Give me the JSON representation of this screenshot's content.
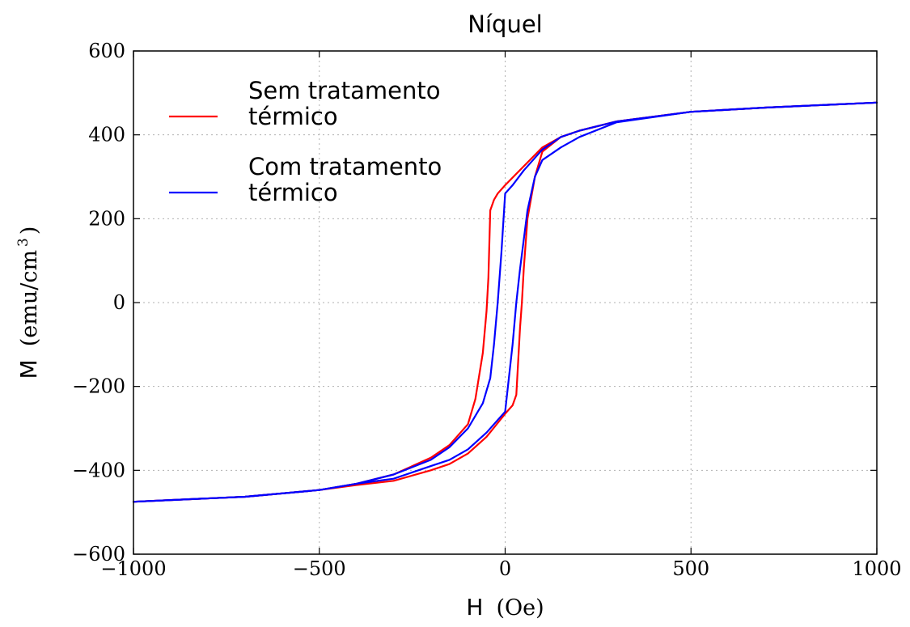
{
  "chart_data": {
    "type": "line",
    "title": "Níquel",
    "xlabel": {
      "symbol": "H",
      "unit": "(Oe)"
    },
    "ylabel": {
      "symbol": "M",
      "unit": "(emu/cm",
      "unit_sup": "3",
      "unit_close": ")"
    },
    "xlim": [
      -1000,
      1000
    ],
    "ylim": [
      -600,
      600
    ],
    "xticks": [
      -1000,
      -500,
      0,
      500,
      1000
    ],
    "xtick_labels": [
      "−1000",
      "−500",
      "0",
      "500",
      "1000"
    ],
    "yticks": [
      -600,
      -400,
      -200,
      0,
      200,
      400,
      600
    ],
    "ytick_labels": [
      "−600",
      "−400",
      "−200",
      "0",
      "200",
      "400",
      "600"
    ],
    "grid": true,
    "legend_position": "upper-left",
    "series": [
      {
        "name": "Sem tratamento térmico",
        "name_lines": [
          "Sem tratamento",
          "térmico"
        ],
        "color": "#ff0000",
        "branches": [
          {
            "x": [
              -1000,
              -700,
              -500,
              -400,
              -300,
              -200,
              -150,
              -100,
              -80,
              -60,
              -50,
              -45,
              -40,
              -30,
              -20,
              0,
              50,
              100,
              150,
              200,
              300,
              500,
              700,
              1000
            ],
            "y": [
              -475,
              -463,
              -447,
              -432,
              -410,
              -370,
              -340,
              -290,
              -230,
              -120,
              -20,
              60,
              220,
              245,
              260,
              280,
              325,
              370,
              395,
              410,
              432,
              455,
              465,
              477
            ]
          },
          {
            "x": [
              1000,
              700,
              500,
              300,
              200,
              150,
              100,
              80,
              60,
              50,
              45,
              40,
              30,
              20,
              0,
              -50,
              -100,
              -150,
              -200,
              -300,
              -400,
              -500,
              -700,
              -1000
            ],
            "y": [
              477,
              465,
              455,
              432,
              410,
              395,
              360,
              300,
              200,
              80,
              0,
              -60,
              -220,
              -245,
              -265,
              -320,
              -360,
              -385,
              -400,
              -425,
              -435,
              -447,
              -463,
              -475
            ]
          }
        ]
      },
      {
        "name": "Com tratamento térmico",
        "name_lines": [
          "Com tratamento",
          "térmico"
        ],
        "color": "#0000ff",
        "branches": [
          {
            "x": [
              -1000,
              -700,
              -500,
              -400,
              -300,
              -200,
              -150,
              -100,
              -60,
              -40,
              -30,
              -20,
              -10,
              0,
              20,
              50,
              100,
              150,
              200,
              300,
              500,
              700,
              1000
            ],
            "y": [
              -475,
              -463,
              -447,
              -432,
              -410,
              -375,
              -345,
              -300,
              -240,
              -180,
              -100,
              0,
              120,
              260,
              280,
              315,
              365,
              395,
              410,
              432,
              455,
              465,
              477
            ]
          },
          {
            "x": [
              1000,
              700,
              500,
              300,
              200,
              150,
              100,
              80,
              60,
              40,
              30,
              20,
              10,
              0,
              -50,
              -100,
              -150,
              -200,
              -300,
              -400,
              -500,
              -700,
              -1000
            ],
            "y": [
              477,
              465,
              455,
              430,
              395,
              370,
              340,
              300,
              220,
              80,
              0,
              -100,
              -180,
              -260,
              -310,
              -350,
              -375,
              -390,
              -420,
              -432,
              -447,
              -463,
              -475
            ]
          }
        ]
      }
    ]
  }
}
